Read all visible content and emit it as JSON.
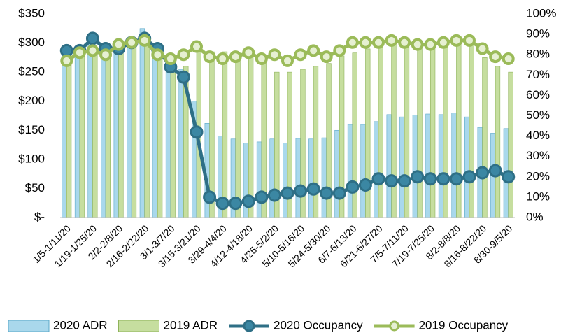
{
  "chart_data": {
    "type": "combo",
    "categories": [
      "1/5-1/11/20",
      null,
      "1/19-1/25/20",
      null,
      "2/2-2/8/20",
      null,
      "2/16-2/22/20",
      null,
      "3/1-3/7/20",
      null,
      "3/15-3/21/20",
      null,
      "3/29-4/4/20",
      null,
      "4/12-4/18/20",
      null,
      "4/25-5/2/20",
      null,
      "5/10-5/16/20",
      null,
      "5/24-5/30/20",
      null,
      "6/7-6/13/20",
      null,
      "6/21-6/27/20",
      null,
      "7/5-7/11/20",
      null,
      "7/19-7/25/20",
      null,
      "8/2-8/8/20",
      null,
      "8/16-8/22/20",
      null,
      "8/30-9/5/20"
    ],
    "series": [
      {
        "name": "2020 ADR",
        "type": "bar",
        "color": "#a9d8ec",
        "values": [
          285,
          290,
          300,
          290,
          295,
          300,
          325,
          285,
          265,
          255,
          200,
          162,
          140,
          135,
          128,
          130,
          135,
          128,
          136,
          135,
          137,
          150,
          160,
          160,
          165,
          177,
          173,
          176,
          178,
          177,
          180,
          173,
          155,
          145,
          153
        ]
      },
      {
        "name": "2019 ADR",
        "type": "bar",
        "color": "#c6de9f",
        "values": [
          275,
          285,
          290,
          285,
          290,
          300,
          305,
          280,
          270,
          260,
          300,
          285,
          285,
          280,
          275,
          270,
          250,
          250,
          255,
          260,
          265,
          278,
          283,
          290,
          300,
          305,
          300,
          295,
          292,
          298,
          300,
          300,
          275,
          260,
          250
        ]
      },
      {
        "name": "2020 Occupancy",
        "type": "line",
        "axis": "y2",
        "color": "#2e6f86",
        "values": [
          82,
          82,
          88,
          83,
          83,
          86,
          88,
          83,
          74,
          69,
          42,
          10,
          7,
          7,
          8,
          10,
          11,
          12,
          13,
          14,
          12,
          12,
          15,
          16,
          19,
          18,
          18,
          20,
          19,
          19,
          19,
          20,
          22,
          23,
          20
        ]
      },
      {
        "name": "2019 Occupancy",
        "type": "line",
        "axis": "y2",
        "color": "#9bbb59",
        "values": [
          77,
          81,
          82,
          80,
          85,
          86,
          87,
          80,
          78,
          80,
          84,
          79,
          78,
          79,
          81,
          78,
          80,
          77,
          80,
          82,
          79,
          82,
          86,
          86,
          86,
          87,
          86,
          85,
          85,
          86,
          87,
          87,
          83,
          79,
          78
        ]
      }
    ],
    "ylim": [
      0,
      350
    ],
    "yticks": [
      {
        "value": 0,
        "label": "$-"
      },
      {
        "value": 50,
        "label": "$50"
      },
      {
        "value": 100,
        "label": "$100"
      },
      {
        "value": 150,
        "label": "$150"
      },
      {
        "value": 200,
        "label": "$200"
      },
      {
        "value": 250,
        "label": "$250"
      },
      {
        "value": 300,
        "label": "$300"
      },
      {
        "value": 350,
        "label": "$350"
      }
    ],
    "y2lim": [
      0,
      100
    ],
    "y2ticks": [
      {
        "value": 0,
        "label": "0%"
      },
      {
        "value": 10,
        "label": "10%"
      },
      {
        "value": 20,
        "label": "20%"
      },
      {
        "value": 30,
        "label": "30%"
      },
      {
        "value": 40,
        "label": "40%"
      },
      {
        "value": 50,
        "label": "50%"
      },
      {
        "value": 60,
        "label": "60%"
      },
      {
        "value": 70,
        "label": "70%"
      },
      {
        "value": 80,
        "label": "80%"
      },
      {
        "value": 90,
        "label": "90%"
      },
      {
        "value": 100,
        "label": "100%"
      }
    ],
    "legend": "bottom"
  }
}
